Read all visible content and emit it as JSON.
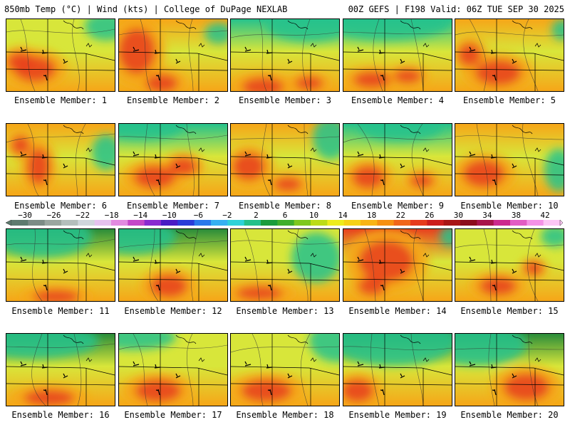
{
  "header": {
    "left_title": "850mb Temp (°C) | Wind (kts) | College of DuPage NEXLAB",
    "right_title": "00Z GEFS | F198 Valid: 06Z TUE SEP 30 2025"
  },
  "colorbar": {
    "labels": [
      "−30",
      "−26",
      "−22",
      "−18",
      "−14",
      "−10",
      "−6",
      "−2",
      "2",
      "6",
      "10",
      "14",
      "18",
      "22",
      "26",
      "30",
      "34",
      "38",
      "42"
    ],
    "colors": [
      "#5e7a6e",
      "#7c8c86",
      "#9aa6a0",
      "#b4bebc",
      "#d0d6dc",
      "#e6c2ee",
      "#e28ae0",
      "#c446c8",
      "#8a2ad0",
      "#4a1cc4",
      "#2a3cd8",
      "#2a78ea",
      "#36b0f2",
      "#2ed2d8",
      "#24c08a",
      "#1a9c3c",
      "#3fae2c",
      "#7ec81e",
      "#bcdc18",
      "#eeec1c",
      "#f6d216",
      "#f8b414",
      "#f69012",
      "#f0661a",
      "#e63a1c",
      "#cc1c1c",
      "#a81414",
      "#8c0c1a",
      "#a8144a",
      "#cc2a8e",
      "#e25cc4",
      "#f492e6",
      "#fcc6f4"
    ]
  },
  "legend_colors": {
    "cold": "#2a8c3a",
    "cool": "#26c28c",
    "mild": "#d8e63a",
    "warm": "#f6a618",
    "hot": "#e8401e"
  },
  "panels": [
    {
      "label": "Ensemble Member: 1"
    },
    {
      "label": "Ensemble Member: 2"
    },
    {
      "label": "Ensemble Member: 3"
    },
    {
      "label": "Ensemble Member: 4"
    },
    {
      "label": "Ensemble Member: 5"
    },
    {
      "label": "Ensemble Member: 6"
    },
    {
      "label": "Ensemble Member: 7"
    },
    {
      "label": "Ensemble Member: 8"
    },
    {
      "label": "Ensemble Member: 9"
    },
    {
      "label": "Ensemble Member: 10"
    },
    {
      "label": "Ensemble Member: 11"
    },
    {
      "label": "Ensemble Member: 12"
    },
    {
      "label": "Ensemble Member: 13"
    },
    {
      "label": "Ensemble Member: 14"
    },
    {
      "label": "Ensemble Member: 15"
    },
    {
      "label": "Ensemble Member: 16"
    },
    {
      "label": "Ensemble Member: 17"
    },
    {
      "label": "Ensemble Member: 18"
    },
    {
      "label": "Ensemble Member: 19"
    },
    {
      "label": "Ensemble Member: 20"
    }
  ]
}
